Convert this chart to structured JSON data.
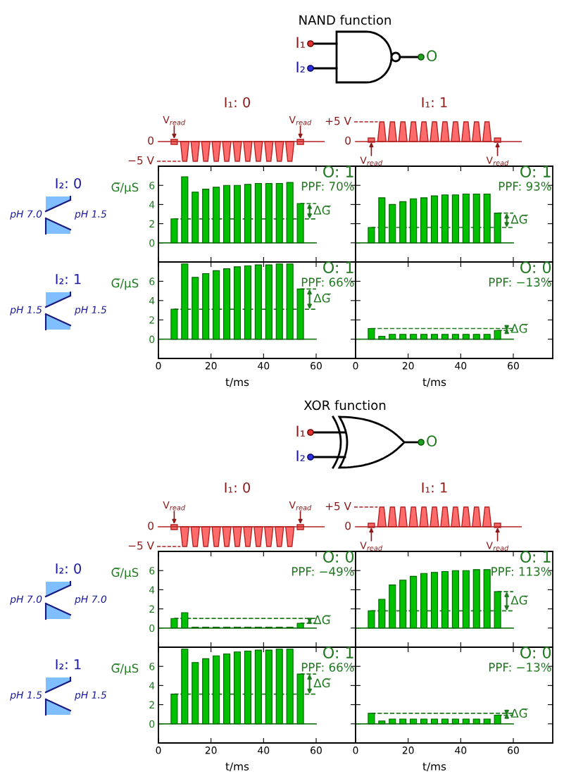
{
  "chart_data": [
    {
      "type": "bar",
      "title": "NAND function",
      "subtitle": "I₁: 0",
      "ylabel": "G̅/μS",
      "x": [
        6,
        10,
        14,
        18,
        22,
        26,
        30,
        34,
        38,
        42,
        46,
        50,
        54
      ],
      "xlim": [
        0,
        75
      ],
      "xticks": [
        0,
        20,
        40,
        60
      ],
      "ylim": [
        -2,
        8
      ],
      "yticks": [
        0,
        2,
        4,
        6
      ],
      "tick_labels": "y",
      "series": [
        {
          "color": "#00c000",
          "values": [
            2.5,
            6.9,
            5.3,
            5.6,
            5.8,
            6.0,
            6.0,
            6.1,
            6.2,
            6.2,
            6.2,
            6.3,
            4.1
          ]
        }
      ],
      "ref_lines": [
        {
          "axis": "y",
          "value": 0,
          "color": "#1f7a1f"
        },
        {
          "axis": "y",
          "value": 2.5,
          "color": "#1f7a1f",
          "line_style": "dashed"
        },
        {
          "axis": "y",
          "value": 4.1,
          "color": "#1f7a1f",
          "line_style": "dashed"
        }
      ],
      "annotations": [
        "O: 1",
        "PPF: 70%",
        "ΔG̅",
        "0",
        "−5 V",
        "V$_{read}$",
        "V$_{read}$",
        "I₂: 0",
        "pH 7.0",
        "pH 1.5",
        "I₁",
        "I₂",
        "O"
      ]
    },
    {
      "type": "bar",
      "subtitle": "I₁: 1",
      "x": [
        6,
        10,
        14,
        18,
        22,
        26,
        30,
        34,
        38,
        42,
        46,
        50,
        54
      ],
      "xlim": [
        0,
        75
      ],
      "xticks": [
        0,
        20,
        40,
        60
      ],
      "ylim": [
        -2,
        8
      ],
      "yticks": [
        0,
        2,
        4,
        6
      ],
      "tick_labels": false,
      "series": [
        {
          "color": "#00c000",
          "values": [
            1.6,
            4.7,
            4.0,
            4.3,
            4.6,
            4.7,
            4.9,
            5.0,
            5.0,
            5.1,
            5.1,
            5.1,
            3.1
          ]
        }
      ],
      "ref_lines": [
        {
          "axis": "y",
          "value": 0,
          "color": "#1f7a1f"
        },
        {
          "axis": "y",
          "value": 1.6,
          "color": "#1f7a1f",
          "line_style": "dashed"
        },
        {
          "axis": "y",
          "value": 3.1,
          "color": "#1f7a1f",
          "line_style": "dashed"
        }
      ],
      "annotations": [
        "O: 1",
        "PPF: 93%",
        "ΔG̅",
        "+5 V",
        "0",
        "V$_{read}$",
        "V$_{read}$"
      ]
    },
    {
      "type": "bar",
      "ylabel": "G̅/μS",
      "xlabel": "t/ms",
      "x": [
        6,
        10,
        14,
        18,
        22,
        26,
        30,
        34,
        38,
        42,
        46,
        50,
        54
      ],
      "xlim": [
        0,
        75
      ],
      "xticks": [
        0,
        20,
        40,
        60
      ],
      "ylim": [
        -2,
        8
      ],
      "yticks": [
        0,
        2,
        4,
        6
      ],
      "series": [
        {
          "color": "#00c000",
          "values": [
            3.1,
            7.8,
            6.4,
            6.8,
            7.1,
            7.3,
            7.5,
            7.6,
            7.7,
            7.7,
            7.8,
            7.8,
            5.2
          ]
        }
      ],
      "ref_lines": [
        {
          "axis": "y",
          "value": 0,
          "color": "#1f7a1f"
        },
        {
          "axis": "y",
          "value": 3.1,
          "color": "#1f7a1f",
          "line_style": "dashed"
        },
        {
          "axis": "y",
          "value": 5.2,
          "color": "#1f7a1f",
          "line_style": "dashed"
        }
      ],
      "annotations": [
        "O: 1",
        "PPF: 66%",
        "ΔG̅",
        "I₂: 1",
        "pH 1.5",
        "pH 1.5"
      ]
    },
    {
      "type": "bar",
      "xlabel": "t/ms",
      "x": [
        6,
        10,
        14,
        18,
        22,
        26,
        30,
        34,
        38,
        42,
        46,
        50,
        54
      ],
      "xlim": [
        0,
        75
      ],
      "xticks": [
        0,
        20,
        40,
        60
      ],
      "ylim": [
        -2,
        8
      ],
      "yticks": [
        0,
        2,
        4,
        6
      ],
      "tick_labels": "x",
      "series": [
        {
          "color": "#00c000",
          "values": [
            1.1,
            0.3,
            0.5,
            0.5,
            0.5,
            0.5,
            0.5,
            0.5,
            0.5,
            0.5,
            0.5,
            0.5,
            0.9
          ]
        }
      ],
      "ref_lines": [
        {
          "axis": "y",
          "value": 0,
          "color": "#1f7a1f"
        },
        {
          "axis": "y",
          "value": 1.1,
          "color": "#1f7a1f",
          "line_style": "dashed"
        },
        {
          "axis": "y",
          "value": 0.9,
          "color": "#1f7a1f",
          "line_style": "dashed"
        }
      ],
      "annotations": [
        "O: 0",
        "PPF: −13%",
        "ΔG̅"
      ]
    },
    {
      "type": "bar",
      "title": "XOR function",
      "subtitle": "I₁: 0",
      "ylabel": "G̅/μS",
      "x": [
        6,
        10,
        14,
        18,
        22,
        26,
        30,
        34,
        38,
        42,
        46,
        50,
        54
      ],
      "xlim": [
        0,
        75
      ],
      "xticks": [
        0,
        20,
        40,
        60
      ],
      "ylim": [
        -2,
        8
      ],
      "yticks": [
        0,
        2,
        4,
        6
      ],
      "tick_labels": "y",
      "series": [
        {
          "color": "#00c000",
          "values": [
            1.0,
            1.6,
            0.1,
            0.1,
            0.1,
            0.1,
            0.1,
            0.1,
            0.1,
            0.1,
            0.1,
            0.1,
            0.5
          ]
        }
      ],
      "ref_lines": [
        {
          "axis": "y",
          "value": 0,
          "color": "#1f7a1f"
        },
        {
          "axis": "y",
          "value": 1.0,
          "color": "#1f7a1f",
          "line_style": "dashed"
        },
        {
          "axis": "y",
          "value": 0.5,
          "color": "#1f7a1f",
          "line_style": "dashed"
        }
      ],
      "annotations": [
        "O: 0",
        "PPF: −49%",
        "ΔG̅",
        "0",
        "−5 V",
        "V$_{read}$",
        "V$_{read}$",
        "I₂: 0",
        "pH 7.0",
        "pH 7.0",
        "I₁",
        "I₂",
        "O"
      ]
    },
    {
      "type": "bar",
      "subtitle": "I₁: 1",
      "x": [
        6,
        10,
        14,
        18,
        22,
        26,
        30,
        34,
        38,
        42,
        46,
        50,
        54
      ],
      "xlim": [
        0,
        75
      ],
      "xticks": [
        0,
        20,
        40,
        60
      ],
      "ylim": [
        -2,
        8
      ],
      "yticks": [
        0,
        2,
        4,
        6
      ],
      "tick_labels": false,
      "series": [
        {
          "color": "#00c000",
          "values": [
            1.8,
            3.0,
            4.5,
            5.0,
            5.4,
            5.7,
            5.8,
            5.9,
            6.0,
            6.0,
            6.1,
            6.1,
            3.8
          ]
        }
      ],
      "ref_lines": [
        {
          "axis": "y",
          "value": 0,
          "color": "#1f7a1f"
        },
        {
          "axis": "y",
          "value": 1.8,
          "color": "#1f7a1f",
          "line_style": "dashed"
        },
        {
          "axis": "y",
          "value": 3.8,
          "color": "#1f7a1f",
          "line_style": "dashed"
        }
      ],
      "annotations": [
        "O: 1",
        "PPF: 113%",
        "ΔG̅",
        "+5 V",
        "0",
        "V$_{read}$",
        "V$_{read}$"
      ]
    },
    {
      "type": "bar",
      "ylabel": "G̅/μS",
      "xlabel": "t/ms",
      "x": [
        6,
        10,
        14,
        18,
        22,
        26,
        30,
        34,
        38,
        42,
        46,
        50,
        54
      ],
      "xlim": [
        0,
        75
      ],
      "xticks": [
        0,
        20,
        40,
        60
      ],
      "ylim": [
        -2,
        8
      ],
      "yticks": [
        0,
        2,
        4,
        6
      ],
      "series": [
        {
          "color": "#00c000",
          "values": [
            3.1,
            7.8,
            6.4,
            6.8,
            7.1,
            7.3,
            7.5,
            7.6,
            7.7,
            7.7,
            7.8,
            7.8,
            5.2
          ]
        }
      ],
      "ref_lines": [
        {
          "axis": "y",
          "value": 0,
          "color": "#1f7a1f"
        },
        {
          "axis": "y",
          "value": 3.1,
          "color": "#1f7a1f",
          "line_style": "dashed"
        },
        {
          "axis": "y",
          "value": 5.2,
          "color": "#1f7a1f",
          "line_style": "dashed"
        }
      ],
      "annotations": [
        "O: 1",
        "PPF: 66%",
        "ΔG̅",
        "I₂: 1",
        "pH 1.5",
        "pH 1.5"
      ]
    },
    {
      "type": "bar",
      "xlabel": "t/ms",
      "x": [
        6,
        10,
        14,
        18,
        22,
        26,
        30,
        34,
        38,
        42,
        46,
        50,
        54
      ],
      "xlim": [
        0,
        75
      ],
      "xticks": [
        0,
        20,
        40,
        60
      ],
      "ylim": [
        -2,
        8
      ],
      "yticks": [
        0,
        2,
        4,
        6
      ],
      "tick_labels": "x",
      "series": [
        {
          "color": "#00c000",
          "values": [
            1.1,
            0.3,
            0.5,
            0.5,
            0.5,
            0.5,
            0.5,
            0.5,
            0.5,
            0.5,
            0.5,
            0.5,
            0.9
          ]
        }
      ],
      "ref_lines": [
        {
          "axis": "y",
          "value": 0,
          "color": "#1f7a1f"
        },
        {
          "axis": "y",
          "value": 1.1,
          "color": "#1f7a1f",
          "line_style": "dashed"
        },
        {
          "axis": "y",
          "value": 0.9,
          "color": "#1f7a1f",
          "line_style": "dashed"
        }
      ],
      "annotations": [
        "O: 0",
        "PPF: −13%",
        "ΔG̅"
      ]
    }
  ]
}
